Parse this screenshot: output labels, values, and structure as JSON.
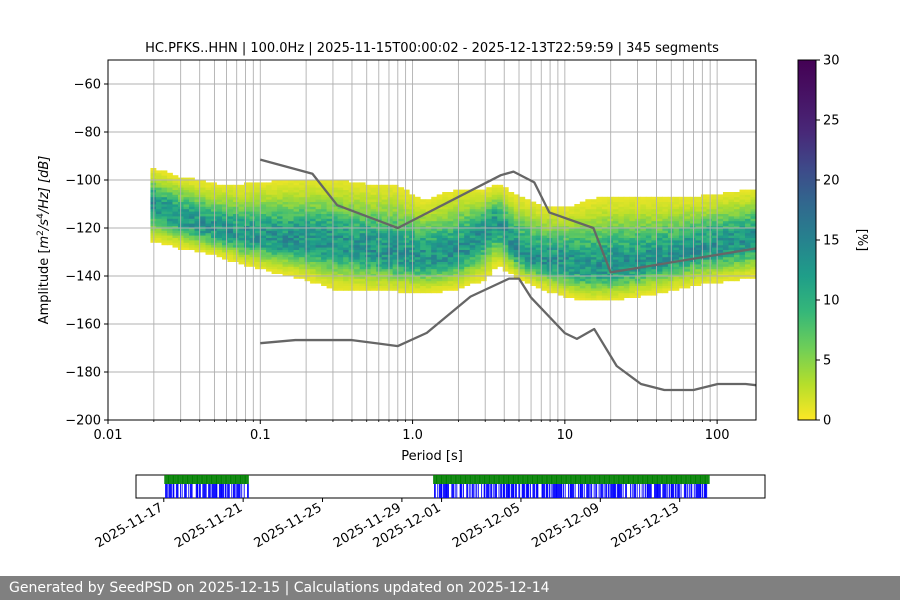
{
  "chart_data": [
    {
      "type": "heatmap",
      "title": "HC.PFKS..HHN | 100.0Hz | 2025-11-15T00:00:02 - 2025-12-13T22:59:59 | 345 segments",
      "xlabel": "Period [s]",
      "ylabel_parts": {
        "pre": "Amplitude [",
        "m": "m",
        "sup1": "2",
        "mid": "/s",
        "sup2": "4",
        "post": "/Hz] [dB]"
      },
      "xscale": "log",
      "xlim": [
        0.01,
        180
      ],
      "ylim": [
        -200,
        -50
      ],
      "x_ticks": [
        0.01,
        0.1,
        1,
        10,
        100
      ],
      "x_tick_labels": [
        "0.01",
        "0.1",
        "1.0",
        "10",
        "100"
      ],
      "y_ticks": [
        -200,
        -180,
        -160,
        -140,
        -120,
        -100,
        -80,
        -60
      ],
      "y_tick_labels": [
        "−200",
        "−180",
        "−160",
        "−140",
        "−120",
        "−100",
        "−80",
        "−60"
      ],
      "grid": true,
      "colormap": "viridis",
      "colorbar_label": "[%]",
      "colorbar_range": [
        0,
        30
      ],
      "colorbar_ticks": [
        0,
        5,
        10,
        15,
        20,
        25,
        30
      ],
      "colorbar_tick_labels": [
        "0",
        "5",
        "10",
        "15",
        "20",
        "25",
        "30"
      ],
      "heatmap_period_range": [
        0.019,
        180
      ],
      "heatmap_mode": {
        "period": [
          0.019,
          0.03,
          0.05,
          0.08,
          0.12,
          0.2,
          0.3,
          0.5,
          0.8,
          1.2,
          2,
          3,
          3.6,
          5,
          7,
          10,
          14,
          20,
          40,
          80,
          180
        ],
        "db": [
          -110,
          -116,
          -121,
          -124,
          -125,
          -126,
          -127,
          -129,
          -132,
          -133,
          -131,
          -123,
          -118,
          -131,
          -134,
          -135,
          -137,
          -137,
          -134,
          -129,
          -125
        ]
      },
      "heatmap_upper": {
        "period": [
          0.019,
          0.03,
          0.05,
          0.08,
          0.12,
          0.2,
          0.3,
          0.5,
          0.8,
          1.2,
          2,
          3,
          3.6,
          5,
          7,
          10,
          14,
          20,
          40,
          80,
          180
        ],
        "db": [
          -96,
          -100,
          -103,
          -103,
          -102,
          -101,
          -101,
          -103,
          -104,
          -110,
          -105,
          -105,
          -103,
          -108,
          -112,
          -113,
          -110,
          -108,
          -109,
          -108,
          -105
        ]
      },
      "heatmap_lower": {
        "period": [
          0.019,
          0.03,
          0.05,
          0.08,
          0.12,
          0.2,
          0.3,
          0.5,
          0.8,
          1.2,
          2,
          3,
          3.6,
          5,
          7,
          10,
          14,
          20,
          40,
          80,
          180
        ],
        "db": [
          -125,
          -128,
          -131,
          -135,
          -138,
          -141,
          -145,
          -146,
          -146,
          -147,
          -145,
          -141,
          -135,
          -141,
          -145,
          -148,
          -150,
          -150,
          -147,
          -143,
          -140
        ]
      },
      "series": [
        {
          "name": "NHNM",
          "color": "#666666",
          "x": [
            0.1,
            0.22,
            0.32,
            0.8,
            3.8,
            4.6,
            6.3,
            7.9,
            15.4,
            20,
            180
          ],
          "y": [
            -91.5,
            -97.4,
            -110.5,
            -120,
            -98,
            -96.5,
            -101,
            -113.5,
            -120,
            -138.5,
            -128.5
          ]
        },
        {
          "name": "NLNM",
          "color": "#666666",
          "x": [
            0.1,
            0.17,
            0.4,
            0.8,
            1.24,
            2.4,
            4.3,
            5,
            6,
            10,
            12,
            15.6,
            21.9,
            31.6,
            45,
            70,
            101,
            154,
            180
          ],
          "y": [
            -168,
            -166.7,
            -166.7,
            -169.2,
            -163.7,
            -148.6,
            -141.1,
            -141.1,
            -149,
            -163.8,
            -166.2,
            -162.1,
            -177.5,
            -185,
            -187.5,
            -187.5,
            -185,
            -185,
            -185.5
          ]
        }
      ]
    },
    {
      "type": "timeline",
      "x_tick_labels": [
        "2025-11-17",
        "2025-11-21",
        "2025-11-25",
        "2025-11-29",
        "2025-12-01",
        "2025-12-05",
        "2025-12-09",
        "2025-12-13"
      ],
      "x_tick_days": [
        2,
        6,
        10,
        14,
        16,
        20,
        24,
        28
      ],
      "range_days": [
        0.6,
        32.3
      ],
      "coverage_segments_days": [
        [
          2.05,
          6.3
        ],
        [
          15.6,
          29.5
        ]
      ],
      "colors": {
        "data": "#008000",
        "gaps": "#0000ff"
      }
    }
  ],
  "footer": {
    "text": "Generated by SeedPSD on 2025-12-15 | Calculations updated on 2025-12-14"
  }
}
